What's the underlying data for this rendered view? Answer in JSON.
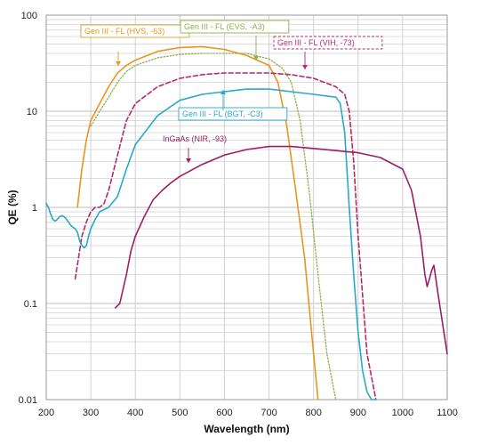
{
  "chart_data": {
    "type": "line",
    "title": "",
    "xlabel": "Wavelength (nm)",
    "ylabel": "QE (%)",
    "xlim": [
      200,
      1100
    ],
    "ylim": [
      0.01,
      100
    ],
    "y_scale": "log",
    "x_ticks": [
      200,
      300,
      400,
      500,
      600,
      700,
      800,
      900,
      1000,
      1100
    ],
    "y_ticks": [
      {
        "value": 0.01,
        "label": "0.01"
      },
      {
        "value": 0.1,
        "label": "0.1"
      },
      {
        "value": 1,
        "label": "1"
      },
      {
        "value": 10,
        "label": "10"
      },
      {
        "value": 100,
        "label": "100"
      }
    ],
    "grid": true,
    "series": [
      {
        "name": "Gen III - FL (HVS, -63)",
        "color": "#e8961e",
        "dash": "solid",
        "x": [
          270,
          280,
          290,
          300,
          320,
          340,
          360,
          380,
          400,
          450,
          500,
          550,
          600,
          650,
          700,
          720,
          740,
          760,
          780,
          800,
          810
        ],
        "y": [
          1.0,
          2.5,
          5.0,
          8.0,
          12,
          18,
          25,
          30,
          34,
          42,
          46,
          47,
          44,
          38,
          30,
          20,
          7,
          1.5,
          0.3,
          0.03,
          0.01
        ]
      },
      {
        "name": "Gen III - FL (EVS, -A3)",
        "color": "#8db04a",
        "dash": "dotted",
        "x": [
          300,
          320,
          340,
          360,
          380,
          400,
          450,
          500,
          550,
          600,
          650,
          700,
          730,
          750,
          770,
          790,
          810,
          830,
          850
        ],
        "y": [
          7,
          10,
          14,
          20,
          26,
          30,
          36,
          39,
          40,
          40,
          40,
          35,
          28,
          20,
          8,
          1.5,
          0.2,
          0.03,
          0.01
        ]
      },
      {
        "name": "Gen III - FL (VIH, -73)",
        "color": "#b22a6a",
        "dash": "dashed",
        "x": [
          265,
          280,
          290,
          300,
          310,
          320,
          330,
          340,
          360,
          380,
          400,
          450,
          500,
          550,
          600,
          650,
          700,
          750,
          800,
          850,
          870,
          880,
          890,
          900,
          920,
          940
        ],
        "y": [
          0.18,
          0.5,
          0.7,
          0.9,
          1.0,
          1.0,
          1.1,
          1.5,
          3.5,
          8,
          12,
          18,
          22,
          24,
          25,
          25,
          25,
          24,
          22,
          18,
          15,
          10,
          3,
          0.5,
          0.03,
          0.01
        ]
      },
      {
        "name": "Gen III - FL (BGT, -C3)",
        "color": "#2aa8c8",
        "dash": "solid",
        "x": [
          200,
          205,
          210,
          215,
          220,
          225,
          230,
          235,
          240,
          245,
          250,
          255,
          260,
          265,
          270,
          275,
          280,
          285,
          290,
          295,
          300,
          310,
          320,
          340,
          360,
          380,
          400,
          450,
          500,
          550,
          600,
          650,
          700,
          750,
          800,
          850,
          860,
          870,
          880,
          890,
          900,
          910,
          920,
          930,
          940
        ],
        "y": [
          1.1,
          1.0,
          0.85,
          0.75,
          0.72,
          0.75,
          0.8,
          0.82,
          0.8,
          0.76,
          0.7,
          0.65,
          0.62,
          0.6,
          0.55,
          0.45,
          0.4,
          0.38,
          0.4,
          0.5,
          0.6,
          0.75,
          0.9,
          1.0,
          1.3,
          2.5,
          4.5,
          9,
          13,
          15,
          16,
          17,
          17,
          16,
          15,
          14,
          12,
          6,
          1.0,
          0.2,
          0.05,
          0.02,
          0.012,
          0.01,
          0.01
        ]
      },
      {
        "name": "InGaAs (NIR, -93)",
        "color": "#9b1f5e",
        "dash": "solid",
        "x": [
          355,
          365,
          380,
          390,
          400,
          420,
          440,
          460,
          480,
          500,
          550,
          600,
          650,
          700,
          750,
          800,
          850,
          900,
          950,
          1000,
          1020,
          1040,
          1050,
          1055,
          1060,
          1065,
          1070,
          1080,
          1090,
          1100
        ],
        "y": [
          0.09,
          0.1,
          0.2,
          0.35,
          0.5,
          0.8,
          1.2,
          1.5,
          1.8,
          2.1,
          2.8,
          3.5,
          4.0,
          4.3,
          4.3,
          4.1,
          3.9,
          3.7,
          3.3,
          2.5,
          1.5,
          0.5,
          0.2,
          0.15,
          0.18,
          0.22,
          0.25,
          0.12,
          0.06,
          0.03
        ]
      }
    ],
    "annotations": [
      {
        "text": "Gen III - FL (HVS, -63)",
        "color": "#e8961e",
        "border": "solid",
        "series": 0,
        "point_x": 365,
        "point_y": 25
      },
      {
        "text": "Gen III - FL (EVS, -A3)",
        "color": "#8db04a",
        "border": "solid",
        "series": 1,
        "point_x": 675,
        "point_y": 36
      },
      {
        "text": "Gen III - FL (VIH, -73)",
        "color": "#b22a6a",
        "border": "dashed",
        "series": 2,
        "point_x": 775,
        "point_y": 25
      },
      {
        "text": "Gen III - FL (BGT, -C3)",
        "color": "#2aa8c8",
        "border": "solid",
        "series": 3,
        "point_x": 650,
        "point_y": 17
      },
      {
        "text": "InGaAs (NIR, -93)",
        "color": "#9b1f5e",
        "border": "none",
        "series": 4,
        "point_x": 475,
        "point_y": 2.0
      }
    ]
  }
}
